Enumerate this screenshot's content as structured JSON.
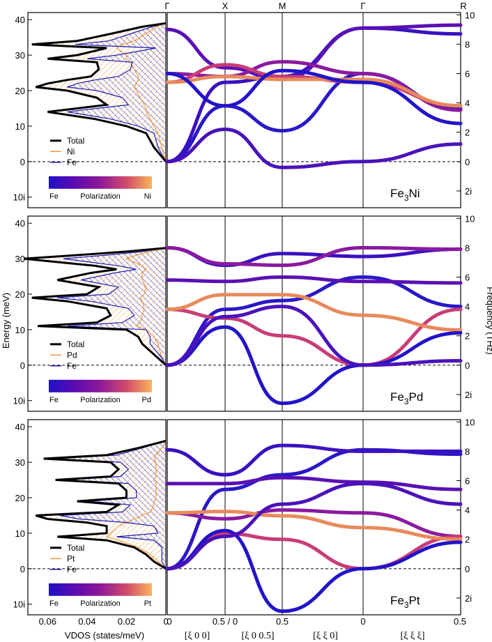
{
  "chart_data": {
    "type": "phonon-dispersion-and-vdos",
    "high_symmetry_points": [
      "Γ",
      "X",
      "M",
      "Γ",
      "R"
    ],
    "path_tick_labels": [
      "0",
      "0.5 / 0",
      "0.5",
      "0",
      "0.5"
    ],
    "path_direction_labels": [
      "[ξ 0 0]",
      "[ξ 0 0.5]",
      "[ξ ξ 0]",
      "[ξ ξ ξ]"
    ],
    "energy_axis_label": "Energy (meV)",
    "frequency_axis_label": "Frequency (THz)",
    "vdos_axis_label": "VDOS  (states/meV)",
    "vdos_ticks": [
      "0.06",
      "0.04",
      "0.02",
      "0"
    ],
    "energy_ticks": [
      "40",
      "30",
      "20",
      "10",
      "0",
      "10i"
    ],
    "frequency_ticks": [
      "10",
      "8",
      "6",
      "4",
      "2",
      "0",
      "2i"
    ],
    "colorbar_title": "Polarization",
    "polarization_colors": [
      "#1e12c8",
      "#5b0ab0",
      "#8e1a98",
      "#c43d78",
      "#f0985a",
      "#f8b45a"
    ],
    "panels": [
      {
        "material_base": "Fe",
        "material_sub": "3",
        "material_rest": "Ni",
        "legend": [
          "Total",
          "Ni",
          "Fe"
        ],
        "colorbar_left": "Fe",
        "colorbar_right": "Ni",
        "vdos": {
          "energy": [
            0,
            2,
            4,
            6,
            8,
            10,
            12,
            14,
            15,
            16,
            18,
            20,
            21,
            22,
            23,
            24,
            26,
            28,
            29,
            30,
            32,
            33,
            34,
            36,
            38,
            39
          ],
          "total": [
            0.0,
            0.003,
            0.006,
            0.008,
            0.01,
            0.02,
            0.036,
            0.06,
            0.045,
            0.03,
            0.035,
            0.05,
            0.066,
            0.06,
            0.05,
            0.038,
            0.034,
            0.035,
            0.06,
            0.045,
            0.03,
            0.068,
            0.045,
            0.028,
            0.012,
            0.0
          ],
          "ni": [
            0,
            0.001,
            0.002,
            0.003,
            0.004,
            0.006,
            0.008,
            0.01,
            0.01,
            0.011,
            0.013,
            0.015,
            0.016,
            0.015,
            0.014,
            0.014,
            0.016,
            0.018,
            0.02,
            0.02,
            0.025,
            0.022,
            0.016,
            0.01,
            0.005,
            0
          ],
          "fe": [
            0,
            0.002,
            0.004,
            0.005,
            0.006,
            0.014,
            0.028,
            0.05,
            0.035,
            0.019,
            0.022,
            0.035,
            0.05,
            0.045,
            0.036,
            0.024,
            0.018,
            0.017,
            0.04,
            0.025,
            0.005,
            0.046,
            0.029,
            0.018,
            0.007,
            0
          ]
        },
        "modes": [
          {
            "color": "#2a18c8",
            "x": [
              0,
              0.5,
              1.0,
              1.5,
              2.0
            ],
            "freq": [
              0,
              3.8,
              2.1,
              6.0,
              3.6
            ]
          },
          {
            "color": "#3b10c0",
            "x": [
              0,
              0.5,
              1.0,
              1.5,
              2.0
            ],
            "freq": [
              0,
              5.4,
              5.8,
              9.1,
              8.7
            ]
          },
          {
            "color": "#5a10b4",
            "x": [
              0,
              0.5,
              1.0,
              1.5,
              2.0
            ],
            "freq": [
              9.0,
              6.4,
              5.6,
              9.1,
              9.3
            ]
          },
          {
            "color": "#8a1aa0",
            "x": [
              0,
              0.5,
              1.0,
              1.5,
              2.0
            ],
            "freq": [
              6.0,
              5.8,
              6.8,
              6.0,
              3.5
            ]
          },
          {
            "color": "#c83d78",
            "x": [
              0,
              0.5,
              1.0,
              1.5,
              2.0
            ],
            "freq": [
              5.4,
              6.6,
              5.8,
              5.4,
              3.8
            ]
          },
          {
            "color": "#e88a5c",
            "x": [
              0,
              0.5,
              1.0,
              1.5,
              2.0
            ],
            "freq": [
              5.4,
              5.8,
              5.6,
              5.6,
              3.8
            ]
          },
          {
            "color": "#2214c8",
            "x": [
              0,
              0.5,
              1.0,
              1.5,
              2.0
            ],
            "freq": [
              6.0,
              3.8,
              6.2,
              5.4,
              2.6
            ]
          },
          {
            "color": "#4a12ba",
            "x": [
              0,
              0.5,
              1.0,
              1.5,
              2.0
            ],
            "freq": [
              0,
              2.2,
              -0.4,
              0,
              1.2
            ]
          }
        ]
      },
      {
        "material_base": "Fe",
        "material_sub": "3",
        "material_rest": "Pd",
        "legend": [
          "Total",
          "Pd",
          "Fe"
        ],
        "colorbar_left": "Fe",
        "colorbar_right": "Pd",
        "vdos": {
          "energy": [
            0,
            2,
            4,
            6,
            8,
            10,
            11,
            12,
            14,
            16,
            18,
            19,
            20,
            22,
            24,
            26,
            27,
            28,
            30,
            31,
            32,
            33
          ],
          "total": [
            0.0,
            0.004,
            0.008,
            0.012,
            0.014,
            0.02,
            0.065,
            0.035,
            0.028,
            0.03,
            0.05,
            0.068,
            0.04,
            0.034,
            0.055,
            0.038,
            0.025,
            0.036,
            0.072,
            0.045,
            0.02,
            0.0
          ],
          "pd": [
            0,
            0.002,
            0.003,
            0.004,
            0.006,
            0.01,
            0.015,
            0.013,
            0.012,
            0.011,
            0.012,
            0.013,
            0.011,
            0.01,
            0.012,
            0.012,
            0.01,
            0.012,
            0.02,
            0.015,
            0.008,
            0
          ],
          "fe": [
            0,
            0.002,
            0.005,
            0.008,
            0.008,
            0.01,
            0.05,
            0.022,
            0.016,
            0.019,
            0.038,
            0.055,
            0.029,
            0.024,
            0.043,
            0.026,
            0.015,
            0.024,
            0.052,
            0.03,
            0.012,
            0
          ]
        },
        "modes": [
          {
            "color": "#2a18c8",
            "x": [
              0,
              0.5,
              1.0,
              1.5,
              2.0
            ],
            "freq": [
              0,
              3.8,
              4.4,
              6.0,
              4.0
            ]
          },
          {
            "color": "#3b10c0",
            "x": [
              0,
              0.5,
              1.0,
              1.5,
              2.0
            ],
            "freq": [
              8.0,
              6.8,
              7.6,
              7.4,
              7.9
            ]
          },
          {
            "color": "#5a10b4",
            "x": [
              0,
              0.5,
              1.0,
              1.5,
              2.0
            ],
            "freq": [
              5.8,
              5.7,
              6.0,
              5.7,
              5.6
            ]
          },
          {
            "color": "#8a1aa0",
            "x": [
              0,
              0.5,
              1.0,
              1.5,
              2.0
            ],
            "freq": [
              8.0,
              6.9,
              6.8,
              8.0,
              7.9
            ]
          },
          {
            "color": "#c83d78",
            "x": [
              0,
              0.5,
              1.0,
              1.5,
              2.0
            ],
            "freq": [
              3.8,
              3.2,
              2.0,
              0,
              3.8
            ]
          },
          {
            "color": "#e88a5c",
            "x": [
              0,
              0.5,
              1.0,
              1.5,
              2.0
            ],
            "freq": [
              3.8,
              4.8,
              4.8,
              3.4,
              2.4
            ]
          },
          {
            "color": "#2214c8",
            "x": [
              0,
              0.5,
              1.0,
              1.5,
              2.0
            ],
            "freq": [
              0,
              2.6,
              -2.6,
              0,
              2.2
            ]
          },
          {
            "color": "#4a12ba",
            "x": [
              0,
              0.5,
              1.0,
              1.5,
              2.0
            ],
            "freq": [
              0,
              3.3,
              4.0,
              0,
              0.3
            ]
          }
        ]
      },
      {
        "material_base": "Fe",
        "material_sub": "3",
        "material_rest": "Pt",
        "legend": [
          "Total",
          "Pt",
          "Fe"
        ],
        "colorbar_left": "Fe",
        "colorbar_right": "Pt",
        "vdos": {
          "energy": [
            0,
            2,
            4,
            6,
            8,
            9,
            10,
            12,
            13,
            14,
            15,
            16,
            18,
            19,
            20,
            22,
            24,
            25,
            26,
            28,
            30,
            31,
            32,
            34,
            36
          ],
          "total": [
            0.0,
            0.006,
            0.01,
            0.016,
            0.03,
            0.055,
            0.03,
            0.03,
            0.04,
            0.06,
            0.066,
            0.03,
            0.024,
            0.045,
            0.02,
            0.02,
            0.024,
            0.056,
            0.028,
            0.024,
            0.028,
            0.062,
            0.03,
            0.014,
            0.0
          ],
          "pt": [
            0,
            0.004,
            0.008,
            0.014,
            0.024,
            0.03,
            0.028,
            0.024,
            0.02,
            0.016,
            0.012,
            0.008,
            0.006,
            0.006,
            0.005,
            0.005,
            0.005,
            0.006,
            0.005,
            0.005,
            0.005,
            0.006,
            0.005,
            0.002,
            0
          ],
          "fe": [
            0,
            0.002,
            0.002,
            0.002,
            0.006,
            0.025,
            0.004,
            0.006,
            0.02,
            0.044,
            0.054,
            0.022,
            0.018,
            0.039,
            0.015,
            0.015,
            0.019,
            0.05,
            0.023,
            0.019,
            0.023,
            0.056,
            0.025,
            0.012,
            0
          ]
        },
        "modes": [
          {
            "color": "#2a18c8",
            "x": [
              0,
              0.5,
              1.0,
              1.5,
              2.0
            ],
            "freq": [
              0,
              5.4,
              6.4,
              8.1,
              7.8
            ]
          },
          {
            "color": "#3b10c0",
            "x": [
              0,
              0.5,
              1.0,
              1.5,
              2.0
            ],
            "freq": [
              8.1,
              6.4,
              8.4,
              8.0,
              8.0
            ]
          },
          {
            "color": "#5a10b4",
            "x": [
              0,
              0.5,
              1.0,
              1.5,
              2.0
            ],
            "freq": [
              5.8,
              5.8,
              6.2,
              5.9,
              5.4
            ]
          },
          {
            "color": "#8a1aa0",
            "x": [
              0,
              0.5,
              1.0,
              1.5,
              2.0
            ],
            "freq": [
              3.8,
              3.4,
              4.0,
              3.8,
              2.2
            ]
          },
          {
            "color": "#c83d78",
            "x": [
              0,
              0.5,
              1.0,
              1.5,
              2.0
            ],
            "freq": [
              0,
              2.4,
              2.0,
              0,
              2.2
            ]
          },
          {
            "color": "#e88a5c",
            "x": [
              0,
              0.5,
              1.0,
              1.5,
              2.0
            ],
            "freq": [
              3.8,
              3.9,
              3.6,
              2.8,
              2.0
            ]
          },
          {
            "color": "#2214c8",
            "x": [
              0,
              0.5,
              1.0,
              1.5,
              2.0
            ],
            "freq": [
              0,
              2.6,
              -2.9,
              0,
              1.8
            ]
          },
          {
            "color": "#4a12ba",
            "x": [
              0,
              0.5,
              1.0,
              1.5,
              2.0
            ],
            "freq": [
              0,
              2.2,
              4.4,
              5.8,
              4.4
            ]
          }
        ]
      }
    ]
  }
}
